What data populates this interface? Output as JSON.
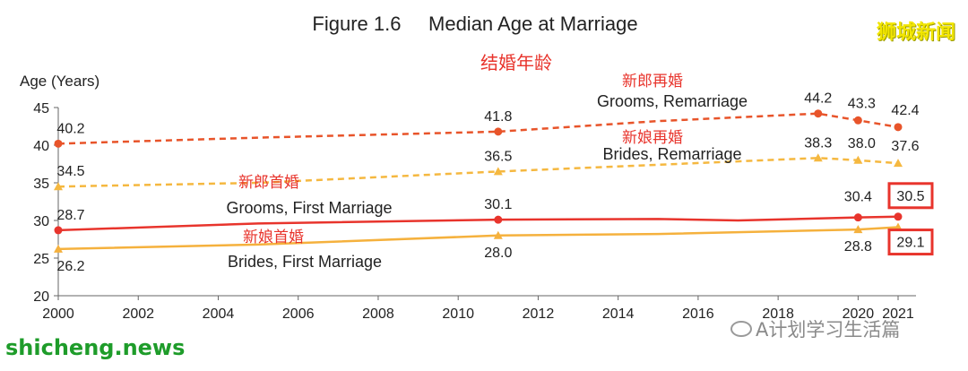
{
  "header": {
    "title": "Figure 1.6     Median Age at Marriage",
    "subtitle_cn": "结婚年龄"
  },
  "watermarks": {
    "top_right": "狮城新闻",
    "bottom_left": "shicheng.news",
    "wechat": "A计划学习生活篇"
  },
  "colors": {
    "grooms_remarriage": "#e8542a",
    "brides_remarriage": "#f5b840",
    "grooms_first": "#e8342c",
    "brides_first": "#f5b13d",
    "highlight_box": "#e8342c",
    "cn_text": "#e8342c"
  },
  "chart_data": {
    "type": "line",
    "title": "Median Age at Marriage",
    "ylabel": "Age (Years)",
    "xlabel": "",
    "ylim": [
      20,
      45
    ],
    "xlim": [
      2000,
      2021
    ],
    "yticks": [
      20,
      25,
      30,
      35,
      40,
      45
    ],
    "xticks": [
      2000,
      2002,
      2004,
      2006,
      2008,
      2010,
      2012,
      2014,
      2016,
      2018,
      2020,
      2021
    ],
    "grid": false,
    "series": [
      {
        "name": "Grooms, Remarriage",
        "name_cn": "新郎再婚",
        "style": "dashed",
        "x": [
          2000,
          2005,
          2011,
          2015,
          2019,
          2020,
          2021
        ],
        "values": [
          40.2,
          41.0,
          41.8,
          43.2,
          44.2,
          43.3,
          42.4
        ],
        "labels": [
          {
            "x": 2000,
            "y": 40.2,
            "text": "40.2"
          },
          {
            "x": 2011,
            "y": 41.8,
            "text": "41.8"
          },
          {
            "x": 2019,
            "y": 44.2,
            "text": "44.2"
          },
          {
            "x": 2020,
            "y": 43.3,
            "text": "43.3"
          },
          {
            "x": 2021,
            "y": 42.4,
            "text": "42.4"
          }
        ]
      },
      {
        "name": "Brides, Remarriage",
        "name_cn": "新娘再婚",
        "style": "dashed",
        "x": [
          2000,
          2005,
          2011,
          2015,
          2019,
          2020,
          2021
        ],
        "values": [
          34.5,
          35.0,
          36.5,
          37.4,
          38.3,
          38.0,
          37.6
        ],
        "labels": [
          {
            "x": 2000,
            "y": 34.5,
            "text": "34.5"
          },
          {
            "x": 2011,
            "y": 36.5,
            "text": "36.5"
          },
          {
            "x": 2019,
            "y": 38.3,
            "text": "38.3"
          },
          {
            "x": 2020,
            "y": 38.0,
            "text": "38.0"
          },
          {
            "x": 2021,
            "y": 37.6,
            "text": "37.6"
          }
        ]
      },
      {
        "name": "Grooms, First Marriage",
        "name_cn": "新郎首婚",
        "style": "solid",
        "x": [
          2000,
          2005,
          2011,
          2015,
          2017,
          2020,
          2021
        ],
        "values": [
          28.7,
          29.6,
          30.1,
          30.2,
          30.0,
          30.4,
          30.5
        ],
        "labels": [
          {
            "x": 2000,
            "y": 28.7,
            "text": "28.7"
          },
          {
            "x": 2011,
            "y": 30.1,
            "text": "30.1"
          },
          {
            "x": 2020,
            "y": 30.4,
            "text": "30.4"
          },
          {
            "x": 2021,
            "y": 30.5,
            "text": "30.5",
            "boxed": true
          }
        ]
      },
      {
        "name": "Brides, First Marriage",
        "name_cn": "新娘首婚",
        "style": "solid",
        "x": [
          2000,
          2005,
          2011,
          2015,
          2020,
          2021
        ],
        "values": [
          26.2,
          26.8,
          28.0,
          28.2,
          28.8,
          29.1
        ],
        "labels": [
          {
            "x": 2000,
            "y": 26.2,
            "text": "26.2"
          },
          {
            "x": 2011,
            "y": 28.0,
            "text": "28.0"
          },
          {
            "x": 2020,
            "y": 28.8,
            "text": "28.8"
          },
          {
            "x": 2021,
            "y": 29.1,
            "text": "29.1",
            "boxed": true
          }
        ]
      }
    ],
    "markers": [
      {
        "series": 0,
        "x": [
          2000,
          2011,
          2019,
          2020,
          2021
        ]
      },
      {
        "series": 1,
        "x": [
          2000,
          2011,
          2019,
          2020,
          2021
        ]
      },
      {
        "series": 2,
        "x": [
          2000,
          2011,
          2020,
          2021
        ]
      },
      {
        "series": 3,
        "x": [
          2000,
          2011,
          2020,
          2021
        ]
      }
    ]
  }
}
